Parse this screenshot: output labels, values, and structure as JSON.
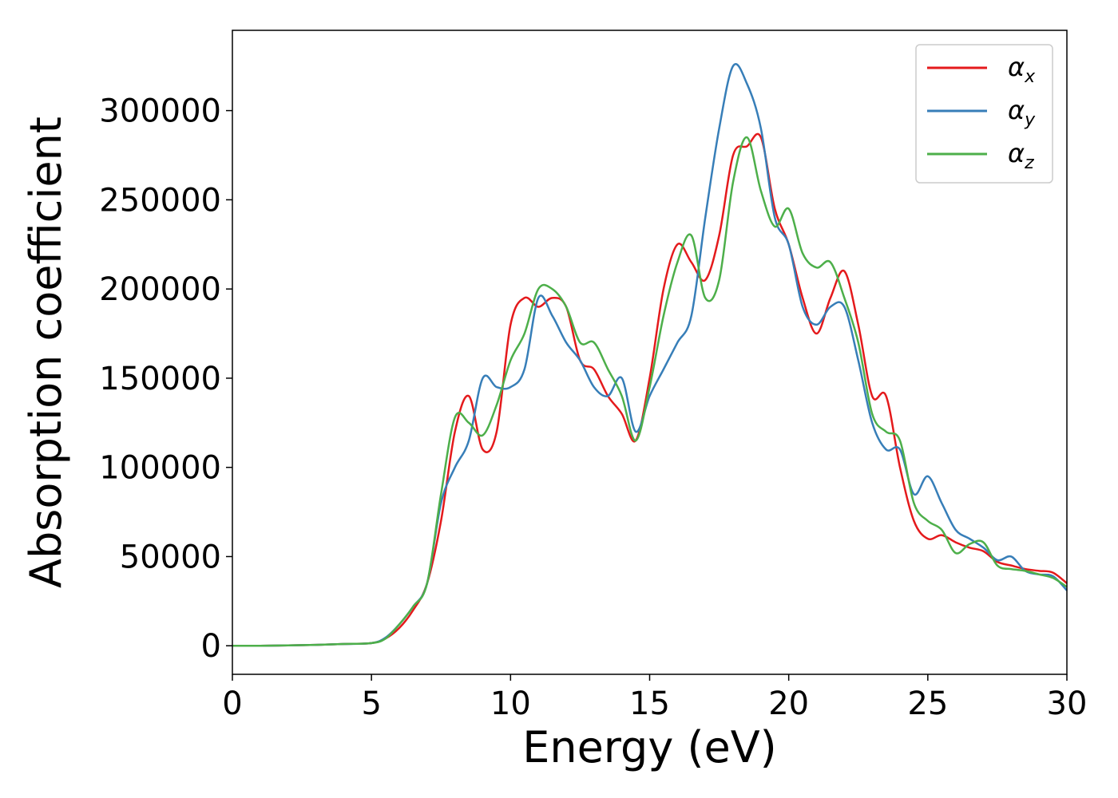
{
  "chart_data": {
    "type": "line",
    "xlabel": "Energy (eV)",
    "ylabel": "Absorption coefficient",
    "xlim": [
      0,
      30
    ],
    "ylim": [
      -16000,
      345000
    ],
    "xticks": [
      0,
      5,
      10,
      15,
      20,
      25,
      30
    ],
    "yticks": [
      0,
      50000,
      100000,
      150000,
      200000,
      250000,
      300000
    ],
    "grid": false,
    "legend_position": "top-right",
    "x": [
      0,
      1,
      2,
      3,
      4,
      5,
      5.5,
      6,
      6.5,
      7,
      7.5,
      8,
      8.5,
      9,
      9.5,
      10,
      10.5,
      11,
      11.5,
      12,
      12.5,
      13,
      13.5,
      14,
      14.5,
      15,
      15.5,
      16,
      16.5,
      17,
      17.5,
      18,
      18.5,
      19,
      19.5,
      20,
      20.5,
      21,
      21.5,
      22,
      22.5,
      23,
      23.5,
      24,
      24.5,
      25,
      25.5,
      26,
      26.5,
      27,
      27.5,
      28,
      28.5,
      29,
      29.5,
      30
    ],
    "series": [
      {
        "name": "α",
        "sub": "x",
        "color": "#e41a1c",
        "values": [
          0,
          0,
          200,
          500,
          1000,
          1500,
          4000,
          10000,
          20000,
          35000,
          70000,
          120000,
          140000,
          110000,
          120000,
          180000,
          195000,
          190000,
          195000,
          190000,
          160000,
          155000,
          140000,
          130000,
          115000,
          150000,
          200000,
          225000,
          215000,
          205000,
          230000,
          275000,
          280000,
          285000,
          245000,
          225000,
          195000,
          175000,
          195000,
          210000,
          180000,
          140000,
          140000,
          100000,
          70000,
          60000,
          62000,
          58000,
          55000,
          53000,
          47000,
          45000,
          43000,
          42000,
          41000,
          35000
        ]
      },
      {
        "name": "α",
        "sub": "y",
        "color": "#377eb8",
        "values": [
          0,
          0,
          200,
          500,
          1000,
          1500,
          4500,
          12000,
          22000,
          35000,
          80000,
          100000,
          115000,
          150000,
          145000,
          145000,
          155000,
          195000,
          185000,
          170000,
          160000,
          145000,
          140000,
          150000,
          120000,
          140000,
          155000,
          170000,
          185000,
          240000,
          290000,
          325000,
          315000,
          290000,
          240000,
          225000,
          190000,
          180000,
          190000,
          190000,
          160000,
          125000,
          110000,
          110000,
          85000,
          95000,
          80000,
          65000,
          60000,
          55000,
          48000,
          50000,
          42000,
          40000,
          39000,
          31000
        ]
      },
      {
        "name": "α",
        "sub": "z",
        "color": "#4daf4a",
        "values": [
          0,
          0,
          200,
          500,
          1000,
          1500,
          4000,
          12000,
          22000,
          35000,
          85000,
          128000,
          125000,
          118000,
          135000,
          160000,
          175000,
          200000,
          200000,
          190000,
          170000,
          170000,
          155000,
          140000,
          115000,
          145000,
          185000,
          215000,
          230000,
          195000,
          205000,
          260000,
          285000,
          255000,
          235000,
          245000,
          220000,
          212000,
          215000,
          195000,
          170000,
          130000,
          120000,
          115000,
          80000,
          70000,
          65000,
          52000,
          57000,
          58000,
          45000,
          43000,
          42000,
          40000,
          38000,
          33000
        ]
      }
    ]
  }
}
